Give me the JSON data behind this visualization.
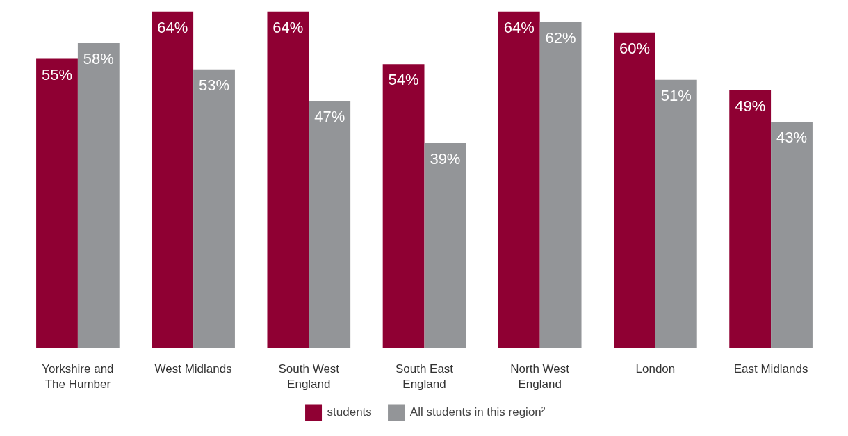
{
  "chart_data": {
    "type": "bar",
    "categories": [
      "Yorkshire and\nThe Humber",
      "West Midlands",
      "South West\nEngland",
      "South East\nEngland",
      "North West\nEngland",
      "London",
      "East Midlands"
    ],
    "series": [
      {
        "name": "students",
        "color": "#8f0033",
        "values": [
          55,
          64,
          64,
          54,
          64,
          60,
          49
        ],
        "value_labels": [
          "55%",
          "64%",
          "64%",
          "54%",
          "64%",
          "60%",
          "49%"
        ]
      },
      {
        "name": "All students in this region²",
        "color": "#939598",
        "values": [
          58,
          53,
          47,
          39,
          62,
          51,
          43
        ],
        "value_labels": [
          "58%",
          "53%",
          "47%",
          "39%",
          "62%",
          "51%",
          "43%"
        ]
      }
    ],
    "legend": "bottom",
    "grid": false
  }
}
